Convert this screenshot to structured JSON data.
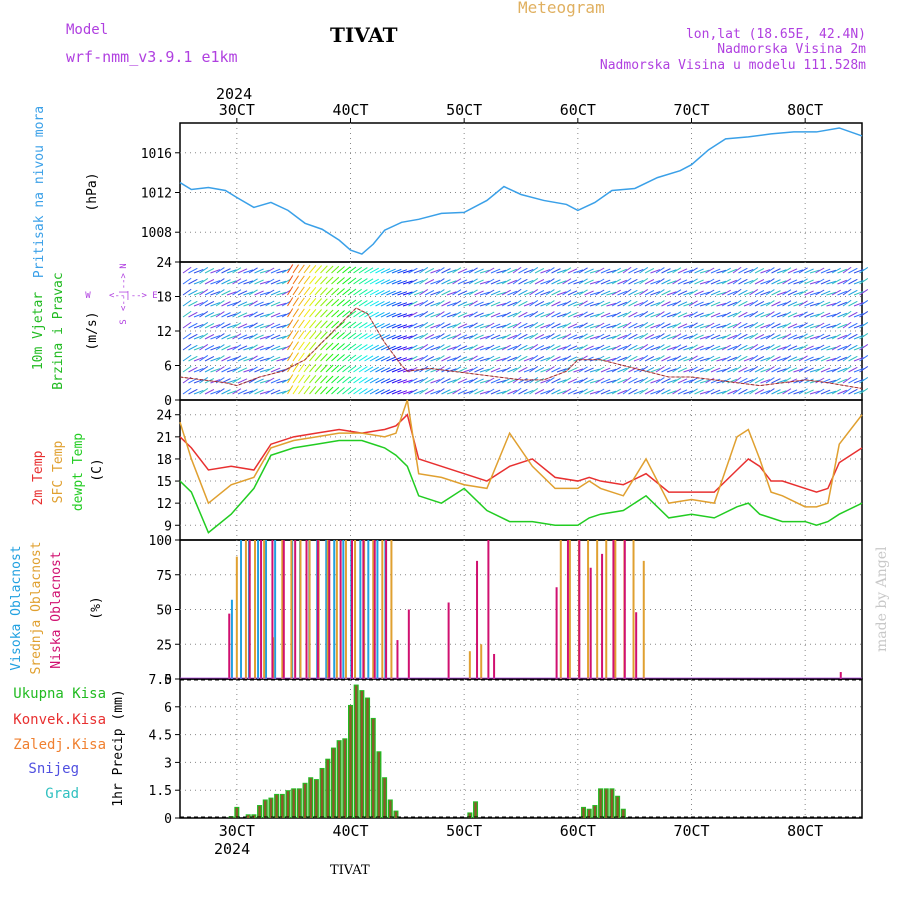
{
  "header": {
    "model_label": "Model",
    "model_name": "wrf-nmm_v3.9.1 e1km",
    "station": "TIVAT",
    "title": "Meteogram",
    "lonlat": "lon,lat (18.65E, 42.4N)",
    "altitude": "Nadmorska Visina 2m",
    "model_altitude": "Nadmorska Visina u modelu 111.528m",
    "footer_station": "TIVAT",
    "watermark": "made by Angel"
  },
  "colors": {
    "pressure": "#3aa0e8",
    "wind_label": "#22bb22",
    "wind_dir": "#b040e0",
    "temp2m": "#e83030",
    "sfc": "#e0a030",
    "dew": "#22cc22",
    "cloud_high": "#20a0e0",
    "cloud_mid": "#e0a030",
    "cloud_low": "#d01070",
    "precip_total": "#22bb22",
    "precip_conv": "#e83030",
    "precip_frz": "#f08030",
    "snow": "#5050e0",
    "hail": "#30c0c0",
    "watermark": "#c8c8c8",
    "header_model": "#b040e0",
    "header_title": "#e0b060"
  },
  "top_axis": {
    "year": "2024",
    "labels": [
      "30CT",
      "40CT",
      "50CT",
      "60CT",
      "70CT",
      "80CT"
    ]
  },
  "bottom_axis": {
    "year": "2024",
    "labels": [
      "30CT",
      "40CT",
      "50CT",
      "60CT",
      "70CT",
      "80CT"
    ]
  },
  "chart_data": [
    {
      "type": "line",
      "name": "pressure",
      "ylabel_parts": [
        "Pritisak na nivou mora",
        "(hPa)"
      ],
      "ylim": [
        1005,
        1019
      ],
      "yticks": [
        1008,
        1012,
        1016
      ],
      "x_days": [
        2.5,
        2.6,
        2.75,
        2.9,
        3.0,
        3.15,
        3.3,
        3.45,
        3.6,
        3.75,
        3.9,
        4.0,
        4.1,
        4.2,
        4.3,
        4.45,
        4.6,
        4.8,
        5.0,
        5.2,
        5.35,
        5.5,
        5.7,
        5.9,
        6.0,
        6.15,
        6.3,
        6.5,
        6.7,
        6.9,
        7.0,
        7.15,
        7.3,
        7.5,
        7.7,
        7.9,
        8.1,
        8.3,
        8.5
      ],
      "values": [
        1013.0,
        1012.3,
        1012.5,
        1012.2,
        1011.5,
        1010.5,
        1011.0,
        1010.2,
        1008.9,
        1008.3,
        1007.2,
        1006.2,
        1005.8,
        1006.8,
        1008.2,
        1009.0,
        1009.3,
        1009.9,
        1010.0,
        1011.2,
        1012.6,
        1011.8,
        1011.2,
        1010.8,
        1010.2,
        1011.0,
        1012.2,
        1012.4,
        1013.5,
        1014.2,
        1014.8,
        1016.3,
        1017.4,
        1017.6,
        1017.9,
        1018.1,
        1018.1,
        1018.5,
        1017.7
      ]
    },
    {
      "type": "line",
      "name": "wind",
      "ylabel_parts": [
        "10m Vjetar",
        "Brzina i Pravac",
        "(m/s)"
      ],
      "direction_legend": [
        "W",
        "<--|-->",
        "E",
        "S",
        "<--|-->",
        "N"
      ],
      "ylim": [
        0,
        24
      ],
      "yticks": [
        0,
        6,
        12,
        18,
        24
      ],
      "x_days": [
        2.5,
        2.7,
        2.9,
        3.0,
        3.2,
        3.4,
        3.6,
        3.8,
        3.9,
        4.0,
        4.05,
        4.15,
        4.3,
        4.45,
        4.5,
        4.7,
        4.9,
        5.1,
        5.3,
        5.5,
        5.7,
        5.9,
        6.0,
        6.2,
        6.4,
        6.6,
        6.8,
        7.0,
        7.2,
        7.4,
        7.6,
        7.8,
        8.0,
        8.2,
        8.5
      ],
      "values": [
        4,
        3.5,
        3,
        2.5,
        4,
        5,
        7,
        11,
        13,
        15,
        16,
        15,
        10,
        6,
        5,
        5.5,
        5,
        4.5,
        4,
        3.5,
        3.5,
        5,
        7,
        7,
        6,
        5,
        4,
        4,
        3.5,
        3,
        2.5,
        3,
        3.5,
        3,
        2
      ]
    },
    {
      "type": "line",
      "name": "temperature",
      "ylabel_parts": [
        "2m Temp",
        "SFC Temp",
        "dewpt Temp",
        "(C)"
      ],
      "ylim": [
        7,
        26
      ],
      "yticks": [
        9,
        12,
        15,
        18,
        21,
        24
      ],
      "series": [
        {
          "name": "2m Temp",
          "x_days": [
            2.5,
            2.6,
            2.75,
            2.95,
            3.15,
            3.3,
            3.5,
            3.7,
            3.9,
            4.1,
            4.3,
            4.4,
            4.5,
            4.6,
            4.8,
            5.0,
            5.2,
            5.4,
            5.6,
            5.8,
            6.0,
            6.1,
            6.2,
            6.4,
            6.6,
            6.8,
            7.0,
            7.2,
            7.4,
            7.5,
            7.6,
            7.7,
            7.8,
            8.0,
            8.1,
            8.2,
            8.3,
            8.5
          ],
          "values": [
            21,
            19.5,
            16.5,
            17,
            16.5,
            20,
            21,
            21.5,
            22,
            21.5,
            22,
            22.5,
            24,
            18,
            17,
            16,
            15,
            17,
            18,
            15.5,
            15,
            15.5,
            15,
            14.5,
            16,
            13.5,
            13.5,
            13.5,
            16.5,
            18,
            17,
            15,
            15,
            14,
            13.5,
            14,
            17.5,
            19.5
          ]
        },
        {
          "name": "SFC Temp",
          "x_days": [
            2.5,
            2.6,
            2.75,
            2.95,
            3.15,
            3.3,
            3.5,
            3.7,
            3.9,
            4.1,
            4.3,
            4.4,
            4.5,
            4.6,
            4.8,
            5.0,
            5.2,
            5.4,
            5.6,
            5.8,
            6.0,
            6.1,
            6.2,
            6.4,
            6.6,
            6.8,
            7.0,
            7.2,
            7.4,
            7.5,
            7.6,
            7.7,
            7.8,
            8.0,
            8.1,
            8.2,
            8.3,
            8.5
          ],
          "values": [
            23,
            18,
            12,
            14.5,
            15.5,
            19.5,
            20.5,
            21,
            21.5,
            21.5,
            21,
            21.5,
            26,
            16,
            15.5,
            14.5,
            14,
            21.5,
            17,
            14,
            14,
            15,
            14,
            13,
            18,
            12,
            12.5,
            12,
            21,
            22,
            18,
            13.5,
            13,
            11.5,
            11.5,
            12,
            20,
            24
          ]
        },
        {
          "name": "dewpt Temp",
          "x_days": [
            2.5,
            2.6,
            2.75,
            2.95,
            3.15,
            3.3,
            3.5,
            3.7,
            3.9,
            4.1,
            4.3,
            4.4,
            4.5,
            4.6,
            4.8,
            5.0,
            5.2,
            5.4,
            5.6,
            5.8,
            6.0,
            6.1,
            6.2,
            6.4,
            6.6,
            6.8,
            7.0,
            7.2,
            7.4,
            7.5,
            7.6,
            7.7,
            7.8,
            8.0,
            8.1,
            8.2,
            8.3,
            8.5
          ],
          "values": [
            15,
            13.5,
            8,
            10.5,
            14,
            18.5,
            19.5,
            20,
            20.5,
            20.5,
            19.5,
            18.5,
            17,
            13,
            12,
            14,
            11,
            9.5,
            9.5,
            9,
            9,
            10,
            10.5,
            11,
            13,
            10,
            10.5,
            10,
            11.5,
            12,
            10.5,
            10,
            9.5,
            9.5,
            9,
            9.5,
            10.5,
            12
          ]
        }
      ]
    },
    {
      "type": "bar",
      "name": "clouds",
      "ylabel_parts": [
        "Visoka Oblacnost",
        "Srednja Oblacnost",
        "Niska Oblacnost",
        "(%)"
      ],
      "ylim": [
        0,
        100
      ],
      "yticks": [
        0,
        25,
        50,
        75,
        100
      ],
      "series": [
        {
          "name": "Visoka Oblacnost",
          "x_days": [
            2.97,
            3.05,
            3.12,
            3.2,
            3.27,
            3.35,
            3.42,
            3.5,
            3.57,
            3.65,
            3.72,
            3.8,
            3.87,
            3.95,
            4.02,
            4.1,
            4.17,
            4.25,
            4.32
          ],
          "values": [
            57,
            100,
            100,
            100,
            100,
            100,
            100,
            100,
            100,
            100,
            100,
            100,
            100,
            100,
            100,
            100,
            100,
            100,
            100
          ]
        },
        {
          "name": "Srednja Oblacnost",
          "x_days": [
            3.0,
            3.08,
            3.16,
            3.24,
            3.32,
            3.4,
            3.48,
            3.56,
            3.64,
            3.72,
            3.8,
            3.88,
            3.96,
            4.04,
            4.12,
            4.2,
            4.28,
            4.36,
            5.05,
            5.15,
            5.85,
            5.93,
            6.01,
            6.09,
            6.17,
            6.25,
            6.33,
            6.41,
            6.49,
            6.58
          ],
          "values": [
            88,
            100,
            100,
            100,
            30,
            100,
            100,
            100,
            100,
            100,
            100,
            100,
            100,
            100,
            100,
            100,
            100,
            100,
            20,
            25,
            100,
            100,
            100,
            100,
            100,
            100,
            100,
            100,
            100,
            85
          ]
        },
        {
          "name": "Niska Oblacnost",
          "x_days": [
            2.92,
            3.1,
            3.2,
            3.3,
            3.4,
            3.5,
            3.6,
            3.7,
            3.8,
            3.9,
            4.0,
            4.1,
            4.2,
            4.3,
            4.4,
            4.5,
            4.85,
            5.1,
            5.2,
            5.25,
            5.8,
            5.9,
            6.0,
            6.1,
            6.2,
            6.3,
            6.4,
            6.5,
            8.3
          ],
          "values": [
            47,
            100,
            100,
            100,
            100,
            100,
            100,
            100,
            100,
            100,
            100,
            100,
            100,
            100,
            28,
            50,
            55,
            85,
            100,
            18,
            66,
            100,
            100,
            80,
            90,
            100,
            100,
            48,
            5
          ]
        }
      ]
    },
    {
      "type": "bar",
      "name": "precipitation",
      "ylabel_parts": [
        "1hr Precip (mm)"
      ],
      "legend": [
        "Ukupna Kisa",
        "Konvek.Kisa",
        "Zaledj.Kisa",
        "Snijeg",
        "Grad"
      ],
      "ylim": [
        0,
        7.5
      ],
      "yticks": [
        0,
        1.5,
        3,
        4.5,
        6,
        7.5
      ],
      "x_days": [
        2.95,
        3.0,
        3.1,
        3.15,
        3.2,
        3.25,
        3.3,
        3.35,
        3.4,
        3.45,
        3.5,
        3.55,
        3.6,
        3.65,
        3.7,
        3.75,
        3.8,
        3.85,
        3.9,
        3.95,
        4.0,
        4.05,
        4.1,
        4.15,
        4.2,
        4.25,
        4.3,
        4.35,
        4.4,
        5.05,
        5.1,
        6.05,
        6.1,
        6.15,
        6.2,
        6.25,
        6.3,
        6.35,
        6.4
      ],
      "values": [
        0.1,
        0.6,
        0.2,
        0.2,
        0.7,
        1.0,
        1.1,
        1.3,
        1.3,
        1.5,
        1.6,
        1.6,
        1.9,
        2.2,
        2.1,
        2.7,
        3.2,
        3.8,
        4.2,
        4.3,
        6.1,
        7.2,
        6.9,
        6.5,
        5.4,
        3.6,
        2.2,
        1.0,
        0.4,
        0.3,
        0.9,
        0.6,
        0.5,
        0.7,
        1.6,
        1.6,
        1.6,
        1.2,
        0.5
      ]
    }
  ]
}
